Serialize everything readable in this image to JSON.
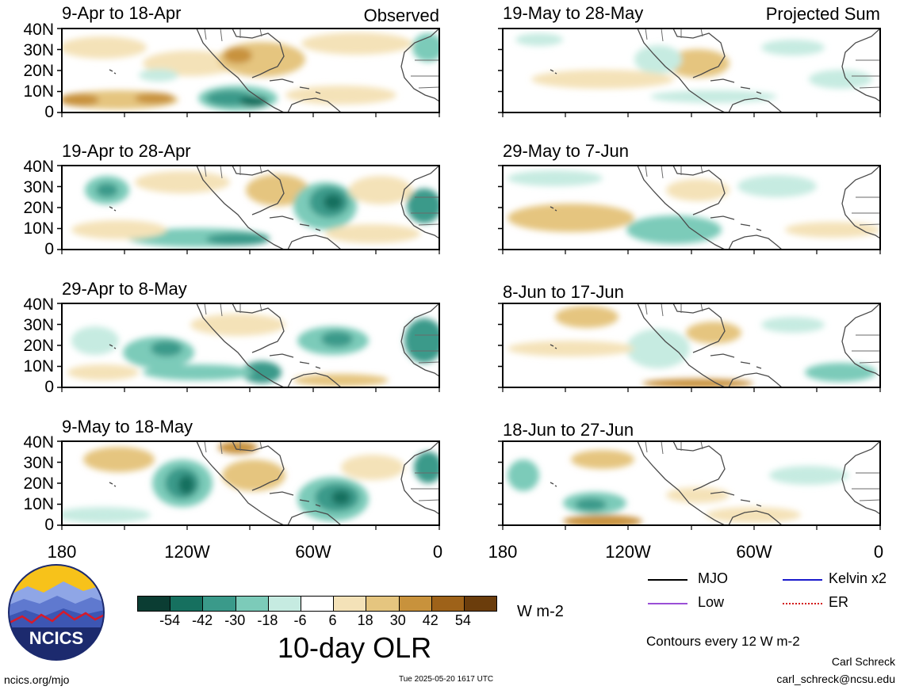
{
  "header": {
    "left_tag": "Observed",
    "right_tag": "Projected Sum"
  },
  "panels_left": [
    {
      "title": "9-Apr to 18-Apr"
    },
    {
      "title": "19-Apr to 28-Apr"
    },
    {
      "title": "29-Apr to 8-May"
    },
    {
      "title": "9-May to 18-May"
    }
  ],
  "panels_right": [
    {
      "title": "19-May to 28-May"
    },
    {
      "title": "29-May to 7-Jun"
    },
    {
      "title": "8-Jun to 17-Jun"
    },
    {
      "title": "18-Jun to 27-Jun"
    }
  ],
  "lat_labels": [
    "40N",
    "30N",
    "20N",
    "10N",
    "0"
  ],
  "lon_labels": [
    "180",
    "120W",
    "60W",
    "0"
  ],
  "colorbar": {
    "colors": [
      "#0b3d33",
      "#16705f",
      "#3a9a8a",
      "#7ccbb9",
      "#c6ebe1",
      "#ffffff",
      "#f4e2b8",
      "#e5c57f",
      "#c8923c",
      "#9e6219",
      "#6b3d0c"
    ],
    "labels": [
      "-54",
      "-42",
      "-30",
      "-18",
      "-6",
      "6",
      "18",
      "30",
      "42",
      "54"
    ],
    "units": "W m-2",
    "title": "10-day OLR"
  },
  "legend": {
    "mjo": {
      "label": "MJO",
      "color": "#000000"
    },
    "kelvin": {
      "label": "Kelvin x2",
      "color": "#1a1acc"
    },
    "low": {
      "label": "Low",
      "color": "#9a4fd6"
    },
    "er": {
      "label": "ER",
      "color": "#d41a1a"
    },
    "contours": "Contours every 12 W m-2"
  },
  "logo": {
    "text": "NCICS"
  },
  "footer": {
    "url": "ncics.org/mjo",
    "timestamp": "Tue 2025-05-20 1617 UTC",
    "author": "Carl Schreck",
    "email": "carl_schreck@ncsu.edu"
  }
}
